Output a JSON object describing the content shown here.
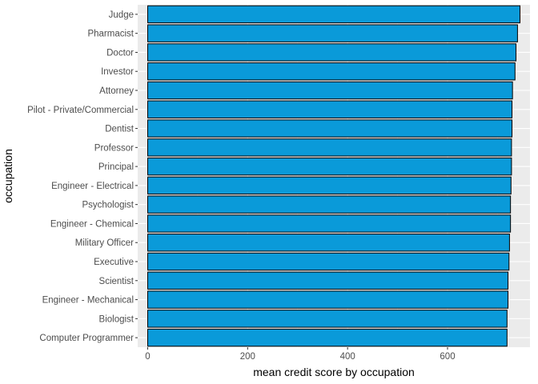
{
  "chart_data": {
    "type": "bar",
    "orientation": "horizontal",
    "categories": [
      "Judge",
      "Pharmacist",
      "Doctor",
      "Investor",
      "Attorney",
      "Pilot - Private/Commercial",
      "Dentist",
      "Professor",
      "Principal",
      "Engineer - Electrical",
      "Psychologist",
      "Engineer - Chemical",
      "Military Officer",
      "Executive",
      "Scientist",
      "Engineer - Mechanical",
      "Biologist",
      "Computer Programmer"
    ],
    "values": [
      745,
      740,
      737,
      735,
      730,
      729,
      729,
      728,
      728,
      727,
      726,
      726,
      724,
      723,
      721,
      721,
      719,
      719
    ],
    "xlabel": "mean credit score by occupation",
    "ylabel": "occupation",
    "xlim": [
      -20,
      765
    ],
    "x_ticks": [
      0,
      200,
      400,
      600
    ],
    "grid": true,
    "legend": "none",
    "colors": {
      "bar_fill": "#0a9ad9",
      "bar_outline": "#000000",
      "panel_background": "#ebebeb",
      "grid_lines": "#ffffff"
    }
  }
}
